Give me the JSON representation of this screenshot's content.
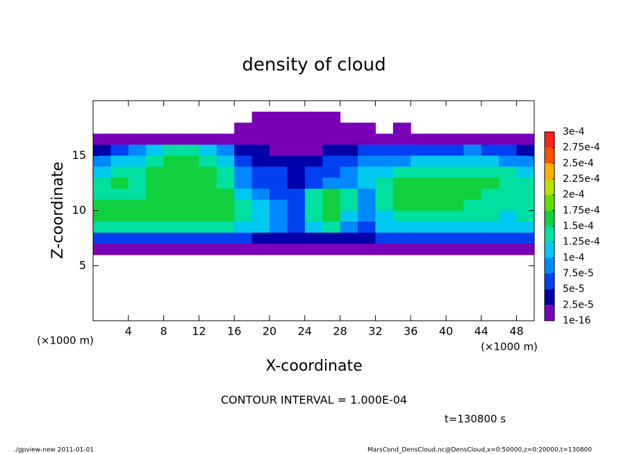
{
  "chart_data": {
    "type": "heatmap",
    "title": "density of cloud",
    "x_label": "X-coordinate",
    "y_label": "Z-coordinate",
    "x_unit": "(×1000 m)",
    "x_unit_right": "(×1000 m)",
    "contour_note": "CONTOUR INTERVAL = 1.000E-04",
    "time_label": "t=130800 s",
    "footer_left": "./gpview-new  2011-01-01",
    "footer_right": "MarsCond_DensCloud.nc@DensCloud,x=0:50000,z=0:20000,t=130800",
    "xlim": [
      0,
      50
    ],
    "ylim": [
      0,
      20
    ],
    "xticks": [
      4,
      8,
      12,
      16,
      20,
      24,
      28,
      32,
      36,
      40,
      44,
      48
    ],
    "yticks": [
      5,
      10,
      15
    ],
    "x": [
      1,
      3,
      5,
      7,
      9,
      11,
      13,
      15,
      17,
      19,
      21,
      23,
      25,
      27,
      29,
      31,
      33,
      35,
      37,
      39,
      41,
      43,
      45,
      47,
      49
    ],
    "y": [
      18.5,
      17.5,
      16.5,
      15.5,
      14.5,
      13.5,
      12.5,
      11.5,
      10.5,
      9.5,
      8.5,
      7.5,
      6.5
    ],
    "values": [
      [
        null,
        null,
        null,
        null,
        null,
        null,
        null,
        null,
        null,
        1e-05,
        1e-05,
        1e-05,
        1e-05,
        1e-05,
        null,
        null,
        null,
        null,
        null,
        null,
        null,
        null,
        null,
        null,
        null
      ],
      [
        null,
        null,
        null,
        null,
        null,
        null,
        null,
        null,
        1e-05,
        1e-05,
        1e-05,
        1e-05,
        1e-05,
        1e-05,
        1e-05,
        1e-05,
        null,
        1e-05,
        null,
        null,
        null,
        null,
        null,
        null,
        null
      ],
      [
        1e-05,
        1e-05,
        1e-05,
        1e-05,
        1e-05,
        1e-05,
        1e-05,
        1e-05,
        1e-05,
        1e-05,
        1e-05,
        1e-05,
        1e-05,
        1e-05,
        1e-05,
        1e-05,
        1e-05,
        1e-05,
        1e-05,
        1e-05,
        1e-05,
        1e-05,
        1e-05,
        1e-05,
        1e-05
      ],
      [
        4e-05,
        6e-05,
        9e-05,
        0.00011,
        0.00014,
        0.00014,
        0.00011,
        9e-05,
        4e-05,
        4e-05,
        1e-05,
        1e-05,
        1e-05,
        4e-05,
        4e-05,
        6e-05,
        6e-05,
        6e-05,
        6e-05,
        6e-05,
        6e-05,
        9e-05,
        6e-05,
        6e-05,
        4e-05
      ],
      [
        9e-05,
        0.00011,
        0.00011,
        0.00014,
        0.00016,
        0.00016,
        0.00014,
        0.00011,
        6e-05,
        4e-05,
        4e-05,
        4e-05,
        4e-05,
        6e-05,
        6e-05,
        9e-05,
        9e-05,
        9e-05,
        0.00011,
        0.00011,
        0.00011,
        0.00011,
        0.00011,
        9e-05,
        9e-05
      ],
      [
        0.00011,
        0.00014,
        0.00014,
        0.00016,
        0.00016,
        0.00016,
        0.00016,
        0.00014,
        9e-05,
        6e-05,
        6e-05,
        4e-05,
        6e-05,
        6e-05,
        9e-05,
        0.00011,
        0.00011,
        0.00014,
        0.00014,
        0.00014,
        0.00014,
        0.00014,
        0.00014,
        0.00014,
        0.00011
      ],
      [
        0.00014,
        0.00016,
        0.00014,
        0.00016,
        0.00016,
        0.00016,
        0.00016,
        0.00014,
        9e-05,
        6e-05,
        6e-05,
        4e-05,
        6e-05,
        9e-05,
        9e-05,
        0.00011,
        0.00014,
        0.00016,
        0.00016,
        0.00016,
        0.00016,
        0.00016,
        0.00016,
        0.00014,
        0.00014
      ],
      [
        0.00014,
        0.00014,
        0.00014,
        0.00016,
        0.00016,
        0.00016,
        0.00016,
        0.00016,
        0.00011,
        9e-05,
        6e-05,
        6e-05,
        0.00014,
        0.00016,
        0.00014,
        9e-05,
        0.00014,
        0.00016,
        0.00016,
        0.00016,
        0.00016,
        0.00016,
        0.00014,
        0.00014,
        0.00014
      ],
      [
        0.00016,
        0.00016,
        0.00016,
        0.00016,
        0.00016,
        0.00016,
        0.00016,
        0.00016,
        0.00014,
        0.00011,
        9e-05,
        6e-05,
        0.00014,
        0.00016,
        0.00014,
        9e-05,
        0.00014,
        0.00016,
        0.00016,
        0.00016,
        0.00016,
        0.00014,
        0.00014,
        0.00014,
        0.00014
      ],
      [
        0.00016,
        0.00016,
        0.00016,
        0.00016,
        0.00016,
        0.00016,
        0.00016,
        0.00016,
        0.00014,
        0.00011,
        9e-05,
        6e-05,
        0.00014,
        0.00016,
        0.00011,
        9e-05,
        0.00011,
        0.00014,
        0.00014,
        0.00014,
        0.00014,
        0.00014,
        0.00014,
        0.00011,
        0.00014
      ],
      [
        0.00014,
        0.00014,
        0.00014,
        0.00014,
        0.00014,
        0.00014,
        0.00014,
        0.00014,
        0.00011,
        0.00011,
        9e-05,
        6e-05,
        0.00011,
        0.00014,
        9e-05,
        6e-05,
        0.00011,
        0.00011,
        0.00011,
        0.00011,
        0.00011,
        0.00011,
        0.00011,
        0.00011,
        0.00011
      ],
      [
        6e-05,
        6e-05,
        6e-05,
        6e-05,
        6e-05,
        6e-05,
        6e-05,
        6e-05,
        6e-05,
        4e-05,
        4e-05,
        4e-05,
        4e-05,
        4e-05,
        4e-05,
        4e-05,
        6e-05,
        6e-05,
        6e-05,
        6e-05,
        6e-05,
        6e-05,
        6e-05,
        6e-05,
        6e-05
      ],
      [
        1e-05,
        1e-05,
        1e-05,
        1e-05,
        1e-05,
        1e-05,
        1e-05,
        1e-05,
        1e-05,
        1e-05,
        1e-05,
        1e-05,
        1e-05,
        1e-05,
        1e-05,
        1e-05,
        1e-05,
        1e-05,
        1e-05,
        1e-05,
        1e-05,
        1e-05,
        1e-05,
        1e-05,
        1e-05
      ]
    ],
    "colorbar": {
      "ticks": [
        1e-16,
        {
          "value": 2.5e-05,
          "label": "2.5e-5"
        },
        {
          "value": 5e-05,
          "label": "5e-5"
        },
        {
          "value": 7.5e-05,
          "label": "7.5e-5"
        },
        {
          "value": 0.0001,
          "label": "1e-4"
        },
        {
          "value": 0.000125,
          "label": "1.25e-4"
        },
        {
          "value": 0.00015,
          "label": "1.5e-4"
        },
        {
          "value": 0.000175,
          "label": "1.75e-4"
        },
        {
          "value": 0.0002,
          "label": "2e-4"
        },
        {
          "value": 0.000225,
          "label": "2.25e-4"
        },
        {
          "value": 0.00025,
          "label": "2.5e-4"
        },
        {
          "value": 0.000275,
          "label": "2.75e-4"
        },
        {
          "value": 0.0003,
          "label": "3e-4"
        }
      ],
      "colors": [
        "#7a00b8",
        "#0000a8",
        "#0040f0",
        "#0088ff",
        "#00c8f0",
        "#00e0a0",
        "#10d040",
        "#60e000",
        "#b8e000",
        "#ffb000",
        "#ff5000",
        "#ff2020"
      ]
    }
  }
}
